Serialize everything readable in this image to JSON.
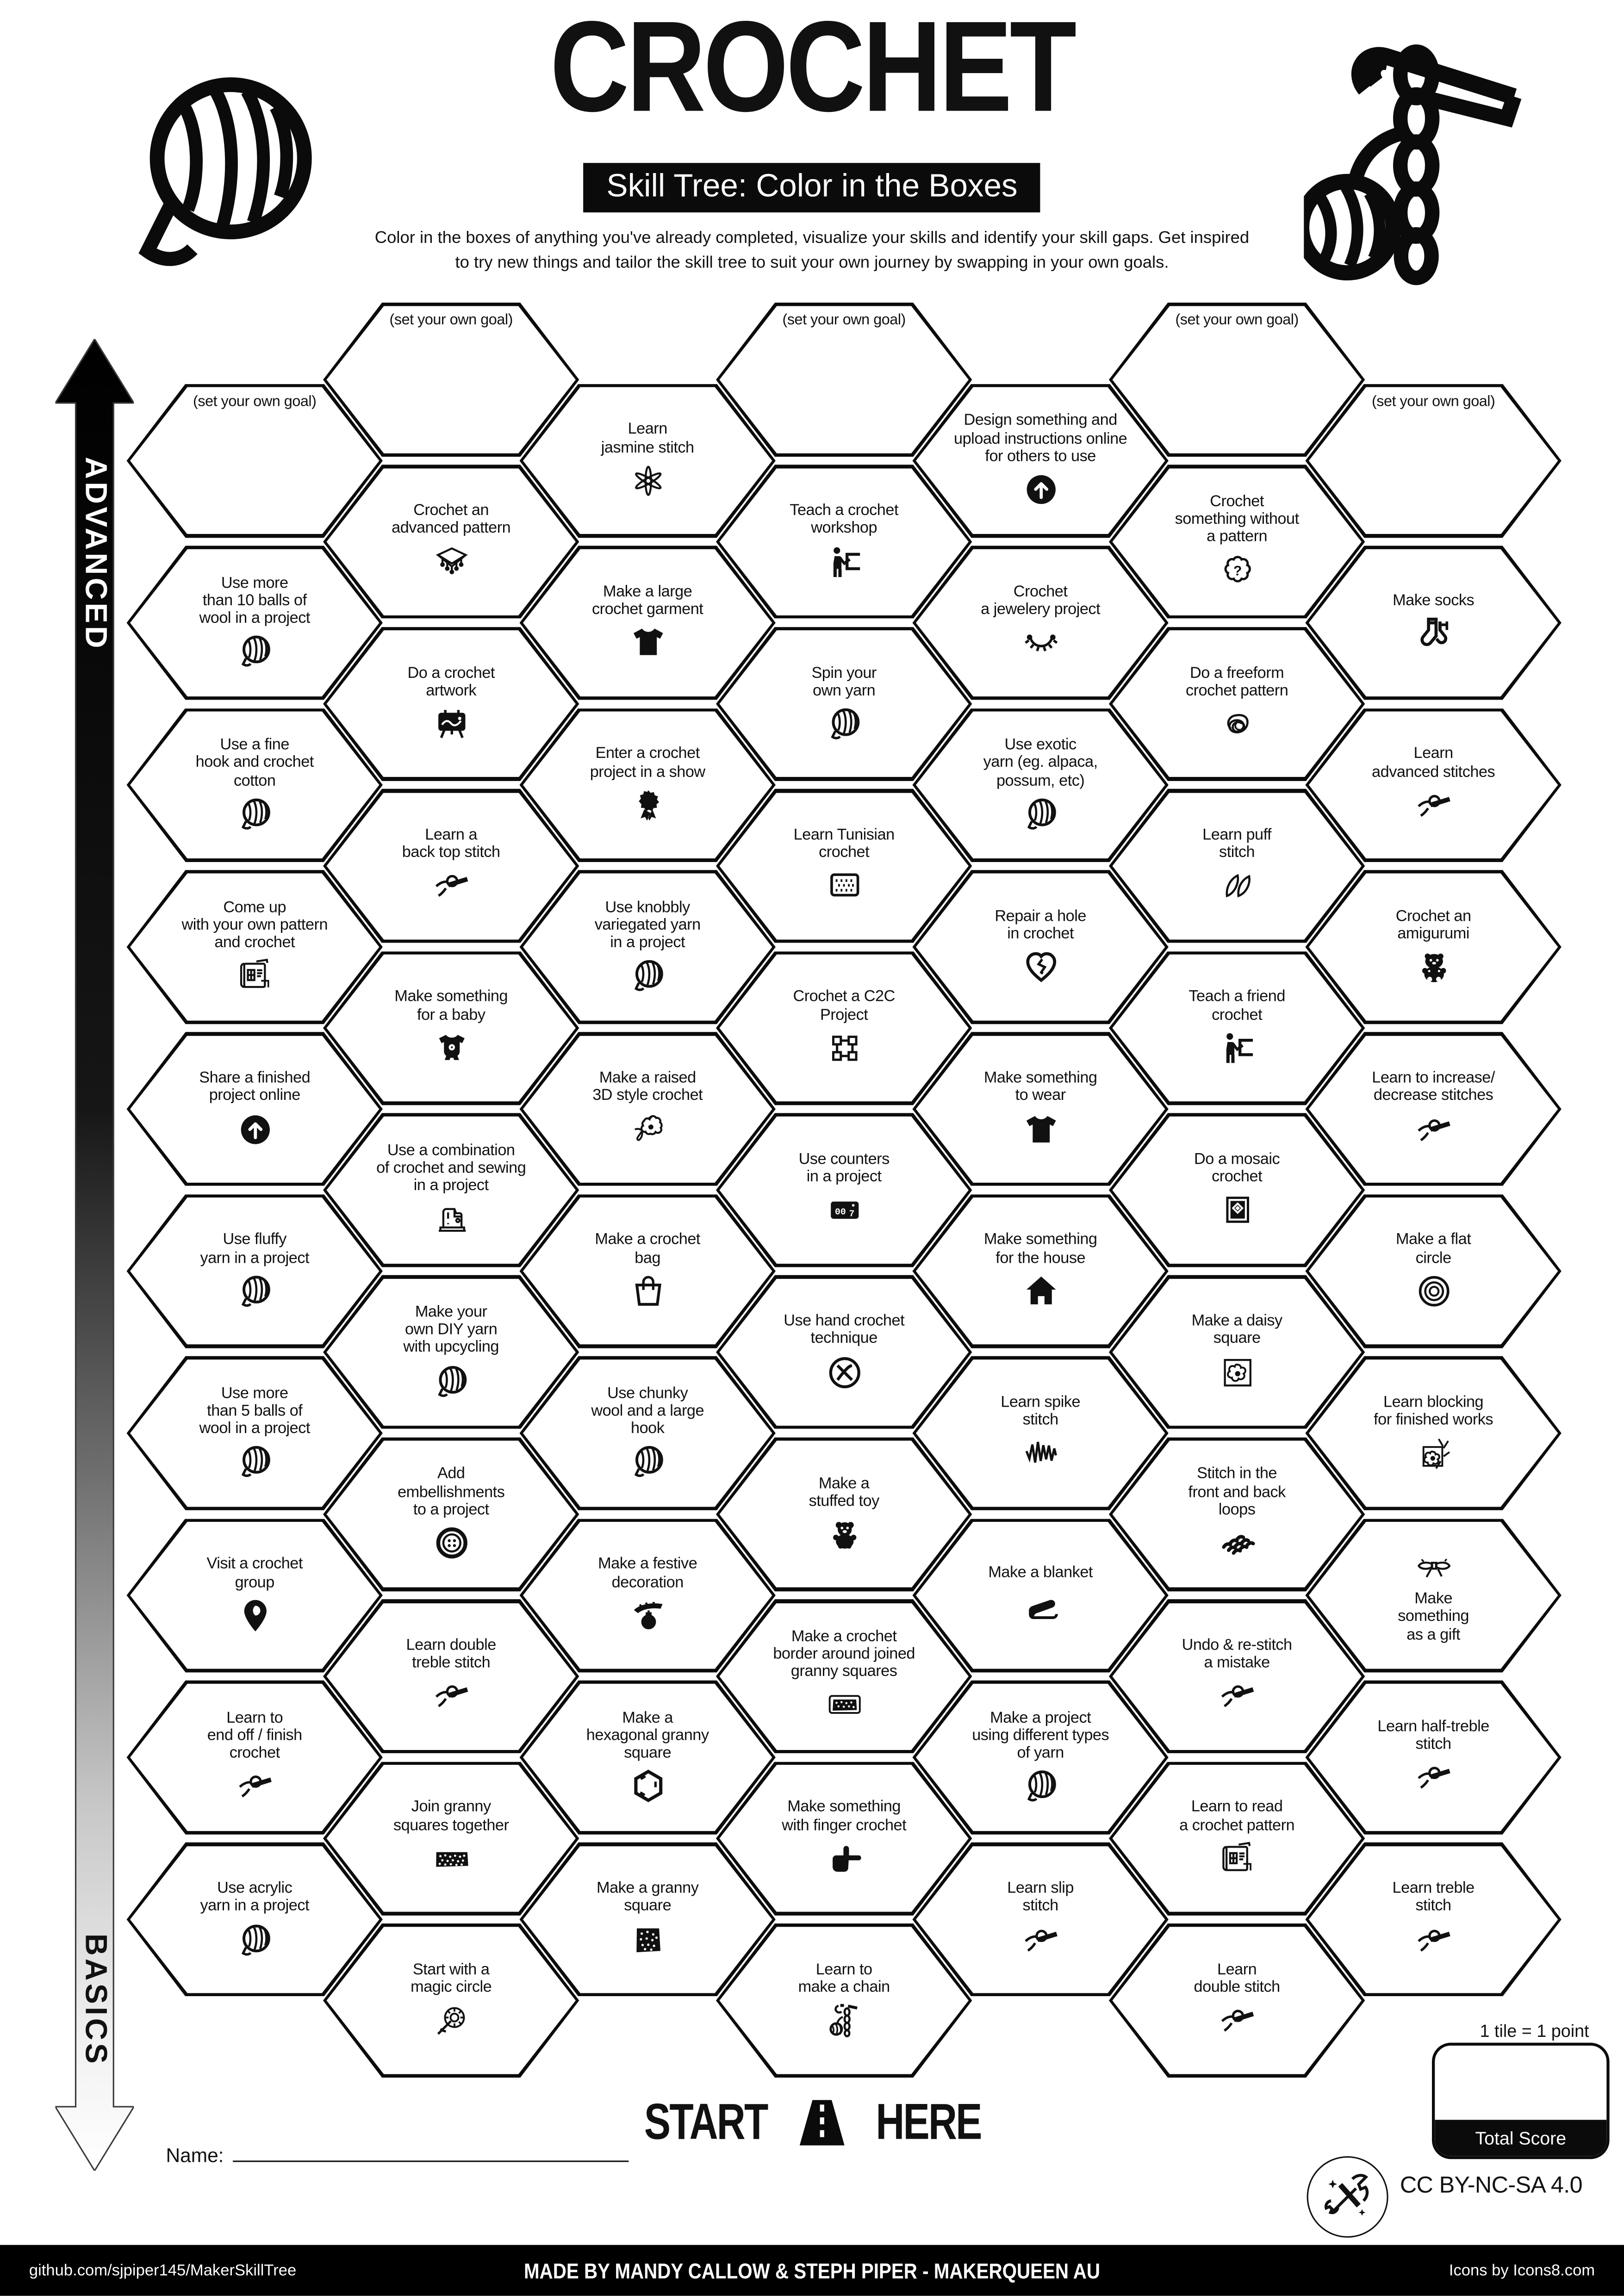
{
  "header": {
    "title": "CROCHET",
    "subtitle": "Skill Tree: Color in the Boxes",
    "description": "Color in the boxes of anything you've already completed, visualize your skills and identify your skill gaps.  Get inspired\nto try new things and tailor the skill tree to suit your own journey by swapping in your own goals.",
    "left_art_icon": "yarn-ball-icon",
    "right_art_icon": "crochet-hook-chain-icon"
  },
  "axis": {
    "top_label": "ADVANCED",
    "bottom_label": "BASICS"
  },
  "colors": {
    "ink": "#0b0b0b",
    "paper": "#ffffff"
  },
  "hexes": [
    {
      "c": 1,
      "r": 0,
      "label": "(set your own goal)",
      "icon": null,
      "goal": true
    },
    {
      "c": 1,
      "r": 1,
      "label": "Use more\nthan 10 balls of\nwool in a project",
      "icon": "yarn-ball"
    },
    {
      "c": 1,
      "r": 2,
      "label": "Use a fine\nhook and crochet\ncotton",
      "icon": "yarn-ball"
    },
    {
      "c": 1,
      "r": 3,
      "label": "Come up\nwith your own pattern\nand crochet",
      "icon": "pattern-doc"
    },
    {
      "c": 1,
      "r": 4,
      "label": "Share a finished\nproject online",
      "icon": "upload"
    },
    {
      "c": 1,
      "r": 5,
      "label": "Use fluffy\nyarn in a project",
      "icon": "yarn-ball"
    },
    {
      "c": 1,
      "r": 6,
      "label": "Use more\nthan 5 balls of\nwool in a project",
      "icon": "yarn-ball"
    },
    {
      "c": 1,
      "r": 7,
      "label": "Visit a crochet\ngroup",
      "icon": "location-pin"
    },
    {
      "c": 1,
      "r": 8,
      "label": "Learn to\nend off / finish\ncrochet",
      "icon": "stitch-hook"
    },
    {
      "c": 1,
      "r": 9,
      "label": "Use acrylic\nyarn in a project",
      "icon": "yarn-ball"
    },
    {
      "c": 2,
      "r": 0,
      "label": "(set your own goal)",
      "icon": null,
      "goal": true
    },
    {
      "c": 2,
      "r": 1,
      "label": "Crochet an\nadvanced pattern",
      "icon": "shawl"
    },
    {
      "c": 2,
      "r": 2,
      "label": "Do a crochet\nartwork",
      "icon": "easel"
    },
    {
      "c": 2,
      "r": 3,
      "label": "Learn a\nback top stitch",
      "icon": "stitch-hook"
    },
    {
      "c": 2,
      "r": 4,
      "label": "Make something\nfor a baby",
      "icon": "baby-onesie"
    },
    {
      "c": 2,
      "r": 5,
      "label": "Use a combination\nof crochet and sewing\nin a project",
      "icon": "sewing-machine"
    },
    {
      "c": 2,
      "r": 6,
      "label": "Make your\nown DIY yarn\nwith upcycling",
      "icon": "yarn-ball"
    },
    {
      "c": 2,
      "r": 7,
      "label": "Add\nembellishments\nto a project",
      "icon": "button"
    },
    {
      "c": 2,
      "r": 8,
      "label": "Learn double\ntreble stitch",
      "icon": "stitch-hook"
    },
    {
      "c": 2,
      "r": 9,
      "label": "Join granny\nsquares together",
      "icon": "granny-join"
    },
    {
      "c": 2,
      "r": 10,
      "label": "Start with a\nmagic circle",
      "icon": "magic-circle"
    },
    {
      "c": 3,
      "r": 0,
      "label": "Learn\njasmine stitch",
      "icon": "jasmine-stitch"
    },
    {
      "c": 3,
      "r": 1,
      "label": "Make a large\ncrochet garment",
      "icon": "tshirt"
    },
    {
      "c": 3,
      "r": 2,
      "label": "Enter a crochet\nproject in a show",
      "icon": "award-ribbon"
    },
    {
      "c": 3,
      "r": 3,
      "label": "Use knobbly\nvariegated yarn\nin a project",
      "icon": "yarn-ball"
    },
    {
      "c": 3,
      "r": 4,
      "label": "Make a raised\n3D style crochet",
      "icon": "flower-3d"
    },
    {
      "c": 3,
      "r": 5,
      "label": "Make a crochet\nbag",
      "icon": "tote-bag"
    },
    {
      "c": 3,
      "r": 6,
      "label": "Use chunky\nwool and a large\nhook",
      "icon": "yarn-ball"
    },
    {
      "c": 3,
      "r": 7,
      "label": "Make a festive\ndecoration",
      "icon": "festive-ornament"
    },
    {
      "c": 3,
      "r": 8,
      "label": "Make a\nhexagonal granny\nsquare",
      "icon": "hexagon"
    },
    {
      "c": 3,
      "r": 9,
      "label": "Make a granny\nsquare",
      "icon": "granny-square"
    },
    {
      "c": 4,
      "r": 0,
      "label": "(set your own goal)",
      "icon": null,
      "goal": true
    },
    {
      "c": 4,
      "r": 1,
      "label": "Teach a crochet\nworkshop",
      "icon": "presenter"
    },
    {
      "c": 4,
      "r": 2,
      "label": "Spin your\nown yarn",
      "icon": "yarn-ball"
    },
    {
      "c": 4,
      "r": 3,
      "label": "Learn Tunisian\ncrochet",
      "icon": "tunisian-swatch"
    },
    {
      "c": 4,
      "r": 4,
      "label": "Crochet a C2C\nProject",
      "icon": "c2c-squares"
    },
    {
      "c": 4,
      "r": 5,
      "label": "Use counters\nin a project",
      "icon": "counter"
    },
    {
      "c": 4,
      "r": 6,
      "label": "Use hand crochet\ntechnique",
      "icon": "hand-crochet"
    },
    {
      "c": 4,
      "r": 7,
      "label": "Make a\nstuffed toy",
      "icon": "stuffed-bear"
    },
    {
      "c": 4,
      "r": 8,
      "label": "Make a crochet\nborder around joined\ngranny squares",
      "icon": "granny-border"
    },
    {
      "c": 4,
      "r": 9,
      "label": "Make something\nwith finger crochet",
      "icon": "finger-hand"
    },
    {
      "c": 4,
      "r": 10,
      "label": "Learn to\nmake a chain",
      "icon": "chain-hook"
    },
    {
      "c": 5,
      "r": 0,
      "label": "Design something and\nupload instructions online\nfor others to use",
      "icon": "upload"
    },
    {
      "c": 5,
      "r": 1,
      "label": "Crochet\na jewelery project",
      "icon": "necklace"
    },
    {
      "c": 5,
      "r": 2,
      "label": "Use exotic\nyarn (eg. alpaca,\npossum, etc)",
      "icon": "yarn-ball"
    },
    {
      "c": 5,
      "r": 3,
      "label": "Repair a hole\nin crochet",
      "icon": "heart-mend"
    },
    {
      "c": 5,
      "r": 4,
      "label": "Make something\nto wear",
      "icon": "tshirt"
    },
    {
      "c": 5,
      "r": 5,
      "label": "Make something\nfor the house",
      "icon": "house"
    },
    {
      "c": 5,
      "r": 6,
      "label": "Learn spike\nstitch",
      "icon": "spike-zigzag"
    },
    {
      "c": 5,
      "r": 7,
      "label": "Make a blanket",
      "icon": "blanket"
    },
    {
      "c": 5,
      "r": 8,
      "label": "Make a project\nusing different types\nof yarn",
      "icon": "yarn-ball"
    },
    {
      "c": 5,
      "r": 9,
      "label": "Learn slip\nstitch",
      "icon": "stitch-hook"
    },
    {
      "c": 6,
      "r": 0,
      "label": "(set your own goal)",
      "icon": null,
      "goal": true
    },
    {
      "c": 6,
      "r": 1,
      "label": "Crochet\nsomething without\na pattern",
      "icon": "question-cloud"
    },
    {
      "c": 6,
      "r": 2,
      "label": "Do a freeform\ncrochet pattern",
      "icon": "freeform-scribble"
    },
    {
      "c": 6,
      "r": 3,
      "label": "Learn puff\nstitch",
      "icon": "puff-leaves"
    },
    {
      "c": 6,
      "r": 4,
      "label": "Teach a friend\ncrochet",
      "icon": "presenter"
    },
    {
      "c": 6,
      "r": 5,
      "label": "Do a mosaic\ncrochet",
      "icon": "mosaic-square"
    },
    {
      "c": 6,
      "r": 6,
      "label": "Make a daisy\nsquare",
      "icon": "daisy-square"
    },
    {
      "c": 6,
      "r": 7,
      "label": "Stitch in the\nfront and back\nloops",
      "icon": "loops-braid"
    },
    {
      "c": 6,
      "r": 8,
      "label": "Undo & re-stitch\na mistake",
      "icon": "stitch-hook"
    },
    {
      "c": 6,
      "r": 9,
      "label": "Learn to read\na crochet pattern",
      "icon": "pattern-doc"
    },
    {
      "c": 6,
      "r": 10,
      "label": "Learn\ndouble stitch",
      "icon": "stitch-hook"
    },
    {
      "c": 7,
      "r": 0,
      "label": "(set your own goal)",
      "icon": null,
      "goal": true
    },
    {
      "c": 7,
      "r": 1,
      "label": "Make socks",
      "icon": "socks"
    },
    {
      "c": 7,
      "r": 2,
      "label": "Learn\nadvanced stitches",
      "icon": "stitch-hook"
    },
    {
      "c": 7,
      "r": 3,
      "label": "Crochet an\namigurumi",
      "icon": "amigurumi-bear"
    },
    {
      "c": 7,
      "r": 4,
      "label": "Learn to increase/\ndecrease stitches",
      "icon": "stitch-hook"
    },
    {
      "c": 7,
      "r": 5,
      "label": "Make a flat\ncircle",
      "icon": "flat-circle"
    },
    {
      "c": 7,
      "r": 6,
      "label": "Learn blocking\nfor finished works",
      "icon": "blocking-pins"
    },
    {
      "c": 7,
      "r": 7,
      "label": "Make\nsomething\nas a gift",
      "icon": "gift-bow",
      "icon_top": true
    },
    {
      "c": 7,
      "r": 8,
      "label": "Learn half-treble\nstitch",
      "icon": "stitch-hook"
    },
    {
      "c": 7,
      "r": 9,
      "label": "Learn treble\nstitch",
      "icon": "stitch-hook"
    }
  ],
  "bottom": {
    "start_left": "START",
    "start_right": "HERE",
    "start_icon": "road-icon",
    "name_label": "Name:",
    "tile_note": "1 tile = 1 point",
    "total_score_label": "Total Score",
    "license": "CC BY-NC-SA 4.0",
    "license_icon": "maker-tools-icon",
    "github": "github.com/sjpiper145/MakerSkillTree",
    "credit": "MADE BY MANDY CALLOW & STEPH PIPER  -  MAKERQUEEN AU",
    "icons_credit": "Icons by Icons8.com"
  }
}
